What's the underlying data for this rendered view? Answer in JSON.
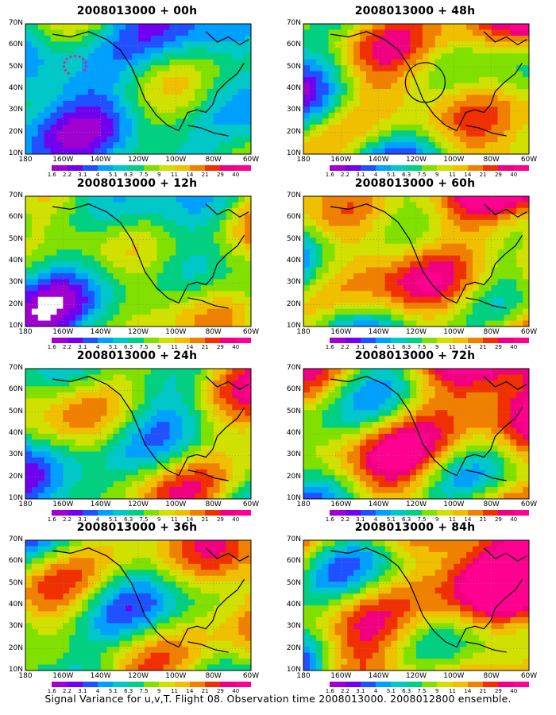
{
  "figure": {
    "caption": "Signal Variance for u,v,T. Flight 08. Observation time 2008013000. 2008012800 ensemble."
  },
  "axes": {
    "lat_labels": [
      "10N",
      "20N",
      "30N",
      "40N",
      "50N",
      "60N",
      "70N"
    ],
    "lon_labels": [
      "180",
      "160W",
      "140W",
      "120W",
      "100W",
      "80W",
      "60W"
    ]
  },
  "colorbar": {
    "labels": [
      "1.6",
      "2.2",
      "3.1",
      "4",
      "5.1",
      "6.3",
      "7.5",
      "9",
      "11",
      "14",
      "21",
      "29",
      "40"
    ],
    "colors": [
      "#ffffff",
      "#a000d0",
      "#7000f0",
      "#2050ff",
      "#00a0ff",
      "#00c8c8",
      "#00d080",
      "#80e000",
      "#d0e000",
      "#f0c000",
      "#f08000",
      "#f03000",
      "#f00080",
      "#ff0090"
    ]
  },
  "panels": [
    {
      "title": "2008013000 + 00h",
      "intensity": 0.25,
      "circle": false,
      "dots": true
    },
    {
      "title": "2008013000 + 48h",
      "intensity": 0.7,
      "circle": true,
      "dots": false
    },
    {
      "title": "2008013000 + 12h",
      "intensity": 0.45,
      "circle": false,
      "dots": false
    },
    {
      "title": "2008013000 + 60h",
      "intensity": 0.8,
      "circle": false,
      "dots": false
    },
    {
      "title": "2008013000 + 24h",
      "intensity": 0.55,
      "circle": false,
      "dots": false
    },
    {
      "title": "2008013000 + 72h",
      "intensity": 0.85,
      "circle": false,
      "dots": false
    },
    {
      "title": "2008013000 + 36h",
      "intensity": 0.62,
      "circle": false,
      "dots": false
    },
    {
      "title": "2008013000 + 84h",
      "intensity": 0.9,
      "circle": false,
      "dots": false
    }
  ]
}
